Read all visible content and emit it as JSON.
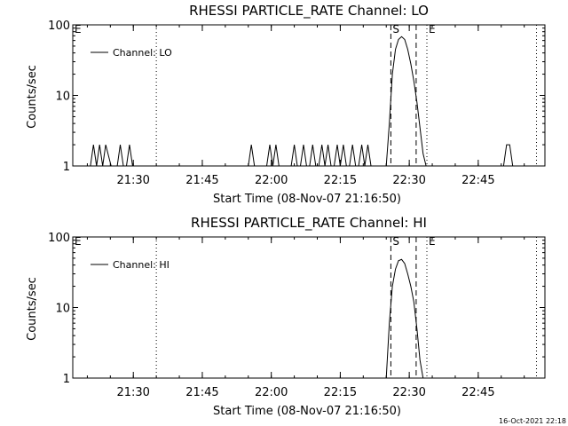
{
  "footer": {
    "timestamp": "16-Oct-2021 22:18"
  },
  "chart_data": [
    {
      "type": "line",
      "title": "RHESSI PARTICLE_RATE Channel: LO",
      "xlabel": "Start Time (08-Nov-07 21:16:50)",
      "ylabel": "Counts/sec",
      "yscale": "log",
      "ylim": [
        1,
        100
      ],
      "xlim": [
        "21:16:50",
        "22:59:30"
      ],
      "xticks": [
        "21:30",
        "21:45",
        "22:00",
        "22:15",
        "22:30",
        "22:45"
      ],
      "yticks": [
        "1",
        "10",
        "100"
      ],
      "legend": {
        "position": "top-left",
        "entries": [
          "Channel: LO"
        ]
      },
      "markers": [
        {
          "label": "E",
          "time": "21:16:50",
          "style": "dotted"
        },
        {
          "label": "",
          "time": "21:35:00",
          "style": "dotted"
        },
        {
          "label": "S",
          "time": "22:26:00",
          "style": "dashed"
        },
        {
          "label": "",
          "time": "22:31:30",
          "style": "dashed"
        },
        {
          "label": "E",
          "time": "22:33:50",
          "style": "dotted"
        },
        {
          "label": "",
          "time": "22:57:40",
          "style": "dotted"
        }
      ],
      "series": [
        {
          "name": "Channel: LO",
          "x": [
            "21:20:40",
            "21:21:20",
            "21:22:00",
            "21:22:40",
            "21:23:20",
            "21:24:00",
            "21:25:10",
            "21:25:50",
            "21:26:30",
            "21:27:10",
            "21:27:50",
            "21:28:30",
            "21:29:10",
            "21:29:50",
            "21:30:30",
            "21:31:10",
            "21:55:00",
            "21:55:40",
            "21:56:20",
            "21:59:00",
            "21:59:40",
            "22:00:20",
            "22:01:00",
            "22:01:40",
            "22:02:20",
            "22:04:20",
            "22:05:00",
            "22:05:40",
            "22:06:20",
            "22:07:00",
            "22:07:40",
            "22:08:20",
            "22:09:00",
            "22:09:40",
            "22:10:20",
            "22:11:00",
            "22:11:40",
            "22:12:20",
            "22:13:00",
            "22:13:40",
            "22:14:20",
            "22:15:00",
            "22:15:40",
            "22:16:20",
            "22:17:00",
            "22:17:40",
            "22:18:20",
            "22:19:00",
            "22:19:40",
            "22:20:20",
            "22:21:00",
            "22:21:40",
            "22:22:20",
            "22:23:00",
            "22:23:40",
            "22:24:20",
            "22:25:00",
            "22:25:40",
            "22:26:20",
            "22:27:00",
            "22:27:40",
            "22:28:20",
            "22:29:00",
            "22:29:40",
            "22:30:20",
            "22:31:00",
            "22:31:40",
            "22:32:20",
            "22:33:00",
            "22:33:40",
            "22:34:20",
            "22:35:00",
            "22:35:40",
            "22:50:30",
            "22:51:10",
            "22:51:50",
            "22:52:30"
          ],
          "y": [
            1,
            2,
            1,
            2,
            1,
            2,
            1,
            1,
            1,
            2,
            1,
            1,
            2,
            1,
            1,
            1,
            1,
            2,
            1,
            1,
            2,
            1,
            2,
            1,
            1,
            1,
            2,
            1,
            1,
            2,
            1,
            1,
            2,
            1,
            1,
            2,
            1,
            2,
            1,
            1,
            2,
            1,
            2,
            1,
            1,
            2,
            1,
            1,
            2,
            1,
            2,
            1,
            1,
            1,
            1,
            1,
            1,
            4,
            20,
            45,
            62,
            68,
            62,
            45,
            28,
            16,
            8,
            3.5,
            1.5,
            1,
            1,
            1,
            1,
            1,
            2,
            2,
            1
          ]
        }
      ]
    },
    {
      "type": "line",
      "title": "RHESSI PARTICLE_RATE Channel: HI",
      "xlabel": "Start Time (08-Nov-07 21:16:50)",
      "ylabel": "Counts/sec",
      "yscale": "log",
      "ylim": [
        1,
        100
      ],
      "xlim": [
        "21:16:50",
        "22:59:30"
      ],
      "xticks": [
        "21:30",
        "21:45",
        "22:00",
        "22:15",
        "22:30",
        "22:45"
      ],
      "yticks": [
        "1",
        "10",
        "100"
      ],
      "legend": {
        "position": "top-left",
        "entries": [
          "Channel: HI"
        ]
      },
      "markers": [
        {
          "label": "E",
          "time": "21:16:50",
          "style": "dotted"
        },
        {
          "label": "",
          "time": "21:35:00",
          "style": "dotted"
        },
        {
          "label": "S",
          "time": "22:26:00",
          "style": "dashed"
        },
        {
          "label": "",
          "time": "22:31:30",
          "style": "dashed"
        },
        {
          "label": "E",
          "time": "22:33:50",
          "style": "dotted"
        },
        {
          "label": "",
          "time": "22:57:40",
          "style": "dotted"
        }
      ],
      "series": [
        {
          "name": "Channel: HI",
          "x": [
            "22:25:00",
            "22:25:40",
            "22:26:20",
            "22:27:00",
            "22:27:40",
            "22:28:20",
            "22:29:00",
            "22:29:40",
            "22:30:20",
            "22:31:00",
            "22:31:40",
            "22:32:20",
            "22:33:00"
          ],
          "y": [
            1,
            6,
            20,
            35,
            46,
            48,
            42,
            30,
            20,
            12,
            5,
            1.8,
            1
          ]
        }
      ]
    }
  ]
}
